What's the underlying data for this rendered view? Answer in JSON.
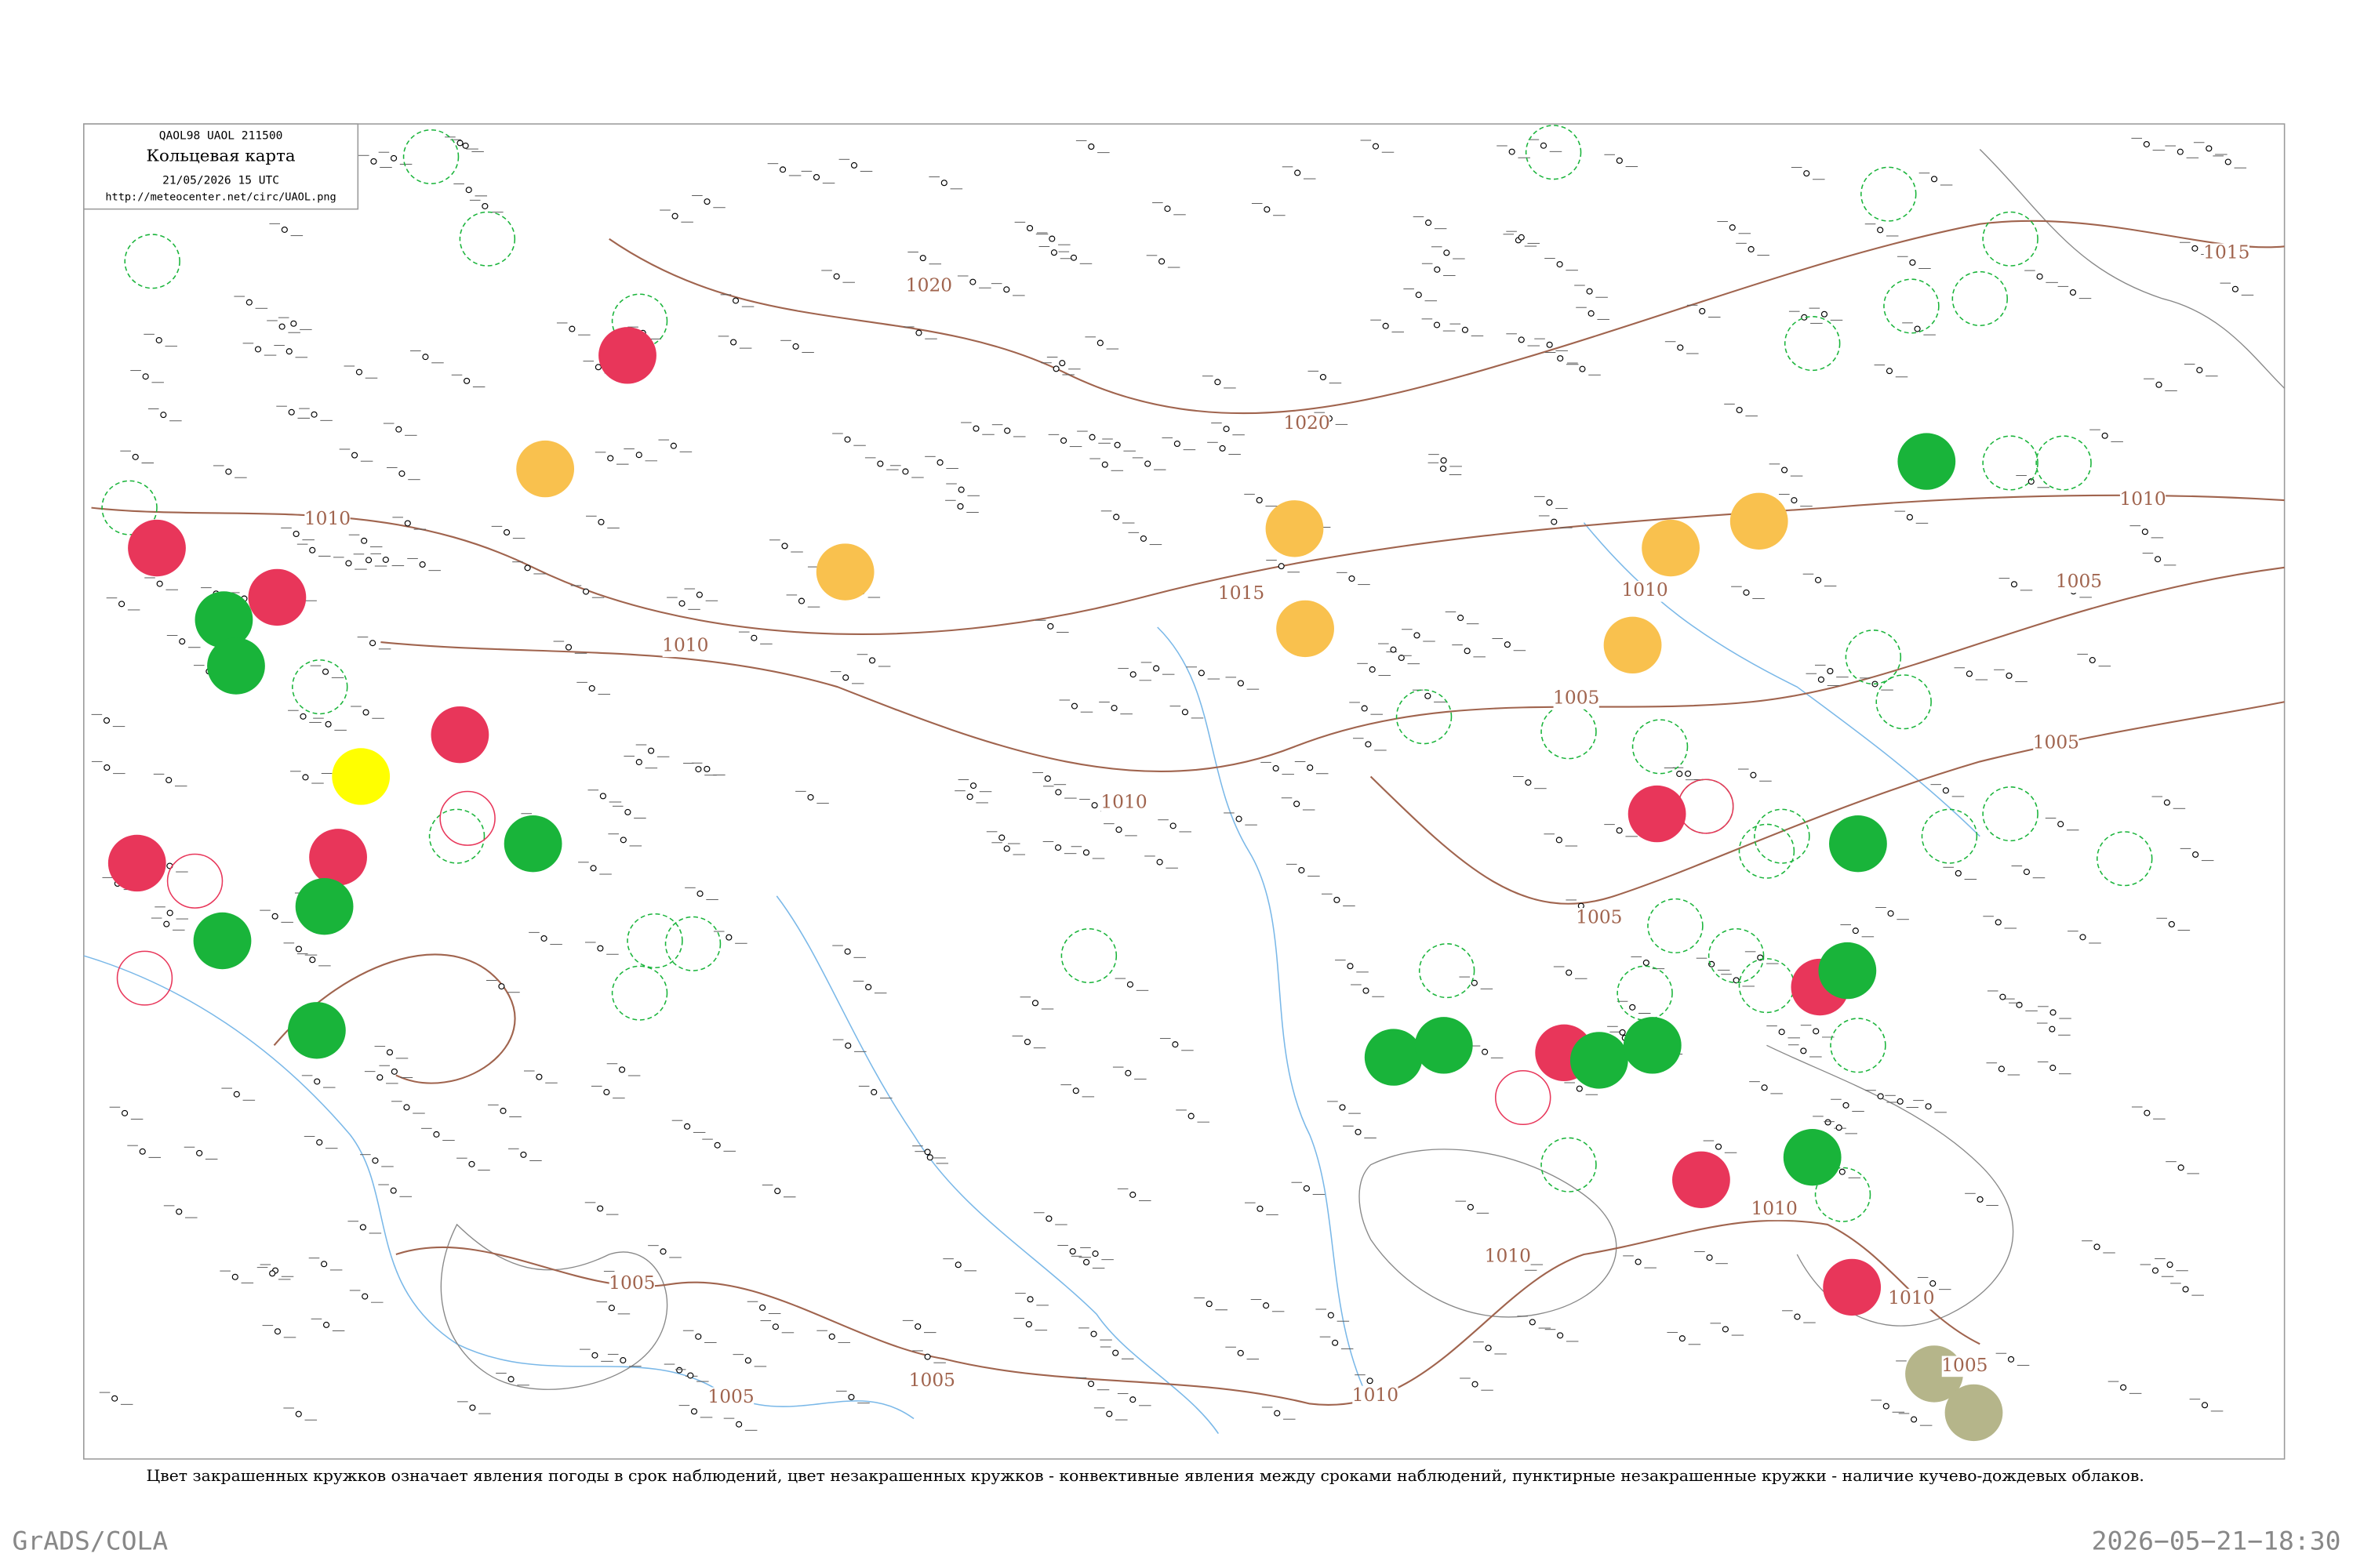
{
  "header": {
    "code": "QAOL98  UAOL  211500",
    "title": "Кольцевая карта",
    "date": "21/05/2026 15 UTC",
    "url": "http://meteocenter.net/circ/UAOL.png"
  },
  "isobar_labels": [
    "1015",
    "1020",
    "1020",
    "1010",
    "1015",
    "1010",
    "1010",
    "1005",
    "1005",
    "1005",
    "1005",
    "1010",
    "1010",
    "1010",
    "1005",
    "1005",
    "1005",
    "1010",
    "1010",
    "1005",
    "1010"
  ],
  "caption": "Цвет закрашенных кружков означает явления погоды в срок наблюдений, цвет незакрашенных кружков - конвективные явления между сроками наблюдений, пунктирные незакрашенные кружки - наличие кучево-дождевых облаков.",
  "footer": {
    "left": "GrADS/COLA",
    "right": "2026−05−21−18:30"
  }
}
